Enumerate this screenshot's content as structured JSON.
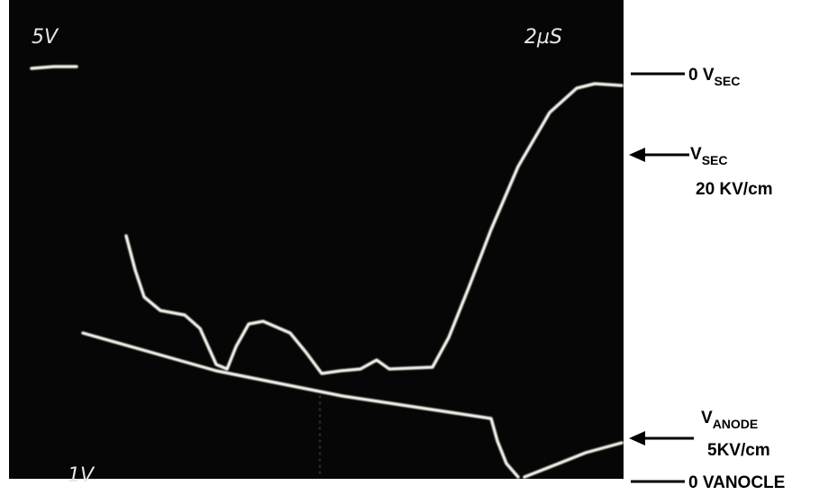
{
  "screen": {
    "volts_per_div_top": "5V",
    "time_per_div": "2µS",
    "volts_per_div_bottom": "1V"
  },
  "annotations": {
    "zero_sec": {
      "main": "0 V",
      "sub": "SEC"
    },
    "sec_scale": {
      "main": "V",
      "sub": "SEC",
      "scale": "20 KV/cm"
    },
    "anode_scale": {
      "main": "V",
      "sub": "ANODE",
      "scale": "5KV/cm"
    },
    "zero_anode": {
      "main": "0 VANOCLE"
    }
  }
}
